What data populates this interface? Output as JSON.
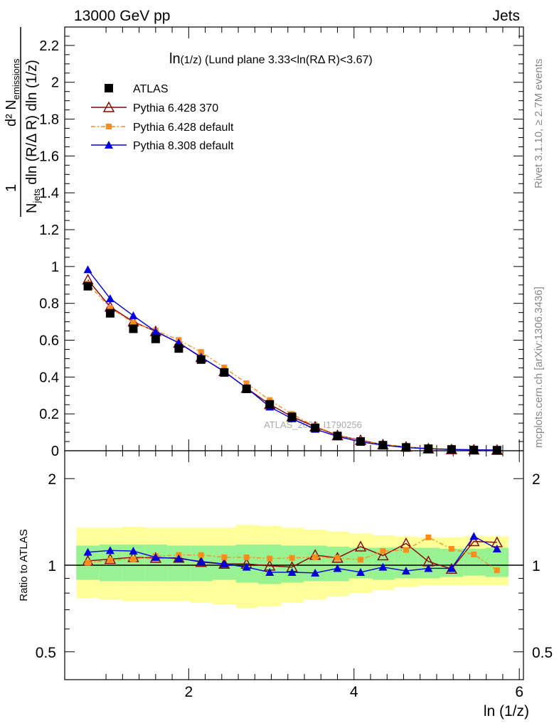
{
  "header": {
    "left": "13000 GeV pp",
    "right": "Jets"
  },
  "side": {
    "rivet": "Rivet 3.1.10, ≥ 2.7M events",
    "mcplots": "mcplots.cern.ch [arXiv:1306.3436]"
  },
  "chart_data": [
    {
      "type": "line",
      "title": "ln(1/z) (Lund plane 3.33<ln(RΔ R)<3.67)",
      "title_main": "ln",
      "title_sub": "(1/z)",
      "title_rest": " (Lund plane 3.33<ln(RΔ R)<3.67)",
      "ylabel_top": "d² N",
      "ylabel_top_sup": "2",
      "ylabel_top_sub": "emissions",
      "ylabel_bottom": "dln (R/Δ R) dln (1/z)",
      "ylabel_bottom_sub": "jets",
      "watermark": "ATLAS_2020_I1790256",
      "xlim": [
        0.5,
        6.05
      ],
      "ylim": [
        0,
        2.3
      ],
      "y_ticks": [
        0,
        0.2,
        0.4,
        0.6,
        0.8,
        1,
        1.2,
        1.4,
        1.6,
        1.8,
        2,
        2.2
      ],
      "y_tick_labels": [
        "0",
        "0.2",
        "0.4",
        "0.6",
        "0.8",
        "1",
        "1.2",
        "1.4",
        "1.6",
        "1.8",
        "2",
        "2.2"
      ],
      "legend_position": "top-left",
      "x": [
        0.78,
        1.05,
        1.33,
        1.6,
        1.88,
        2.15,
        2.43,
        2.7,
        2.98,
        3.25,
        3.53,
        3.8,
        4.08,
        4.35,
        4.63,
        4.9,
        5.18,
        5.45,
        5.73
      ],
      "series": [
        {
          "name": "ATLAS",
          "color": "#000000",
          "marker": "square",
          "values": [
            0.893,
            0.746,
            0.662,
            0.607,
            0.555,
            0.495,
            0.425,
            0.336,
            0.252,
            0.184,
            0.124,
            0.08,
            0.05,
            0.03,
            0.018,
            0.011,
            0.007,
            0.004,
            0.003
          ]
        },
        {
          "name": "Pythia 6.428 370",
          "color": "#8b0000",
          "marker": "triangle-open",
          "values": [
            0.928,
            0.781,
            0.7,
            0.648,
            0.585,
            0.507,
            0.431,
            0.34,
            0.252,
            0.185,
            0.13,
            0.083,
            0.057,
            0.033,
            0.021,
            0.011,
            0.007,
            0.005,
            0.0035
          ]
        },
        {
          "name": "Pythia 6.428 default",
          "color": "#ff8c1a",
          "marker": "square-small",
          "dash": "dashdot",
          "values": [
            0.907,
            0.775,
            0.694,
            0.652,
            0.601,
            0.536,
            0.452,
            0.366,
            0.275,
            0.199,
            0.132,
            0.087,
            0.052,
            0.034,
            0.02,
            0.014,
            0.008,
            0.0044,
            0.0029
          ]
        },
        {
          "name": "Pythia 8.308 default",
          "color": "#0000dd",
          "marker": "triangle-filled",
          "values": [
            0.983,
            0.826,
            0.733,
            0.647,
            0.586,
            0.509,
            0.429,
            0.341,
            0.238,
            0.174,
            0.117,
            0.078,
            0.048,
            0.03,
            0.017,
            0.011,
            0.007,
            0.005,
            0.0034
          ]
        }
      ]
    },
    {
      "type": "line",
      "ylabel": "Ratio to ATLAS",
      "xlabel": "ln (1/z)",
      "x_ticks": [
        2,
        4,
        6
      ],
      "x_tick_labels": [
        "2",
        "4",
        "6"
      ],
      "y_scale": "log",
      "ylim": [
        0.4,
        2.5
      ],
      "y_tick_labels_shown": [
        "0.5",
        "1",
        "2"
      ],
      "y_ticks_labeled": [
        0.5,
        1,
        2
      ],
      "bands": {
        "x_edges": [
          0.64,
          0.92,
          1.19,
          1.47,
          1.74,
          2.02,
          2.29,
          2.57,
          2.84,
          3.12,
          3.39,
          3.67,
          3.94,
          4.22,
          4.49,
          4.77,
          5.04,
          5.32,
          5.59,
          5.87
        ],
        "stat_lo": [
          0.89,
          0.88,
          0.88,
          0.88,
          0.88,
          0.88,
          0.89,
          0.87,
          0.86,
          0.87,
          0.88,
          0.88,
          0.9,
          0.89,
          0.9,
          0.9,
          0.91,
          0.92,
          0.91
        ],
        "stat_hi": [
          1.17,
          1.18,
          1.18,
          1.18,
          1.17,
          1.17,
          1.17,
          1.18,
          1.18,
          1.17,
          1.17,
          1.16,
          1.15,
          1.15,
          1.15,
          1.15,
          1.14,
          1.14,
          1.15
        ],
        "syst_lo": [
          0.77,
          0.76,
          0.75,
          0.75,
          0.75,
          0.74,
          0.73,
          0.71,
          0.72,
          0.74,
          0.76,
          0.78,
          0.8,
          0.82,
          0.84,
          0.85,
          0.85,
          0.85,
          0.85
        ],
        "syst_hi": [
          1.35,
          1.35,
          1.36,
          1.35,
          1.35,
          1.35,
          1.35,
          1.38,
          1.37,
          1.35,
          1.33,
          1.31,
          1.29,
          1.27,
          1.26,
          1.25,
          1.25,
          1.26,
          1.26
        ],
        "stat_color": "#99f291",
        "syst_color": "#ffff99"
      },
      "series": [
        {
          "name": "Pythia 6.428 370",
          "color": "#8b0000",
          "marker": "triangle-open",
          "values": [
            1.035,
            1.05,
            1.065,
            1.06,
            1.06,
            1.025,
            1.01,
            1.01,
            0.995,
            0.985,
            1.085,
            1.06,
            1.16,
            1.08,
            1.19,
            1.03,
            0.97,
            1.21,
            1.2
          ]
        },
        {
          "name": "Pythia 6.428 default",
          "color": "#ff8c1a",
          "marker": "square-small",
          "dash": "dashdot",
          "values": [
            1.02,
            1.04,
            1.05,
            1.075,
            1.085,
            1.085,
            1.065,
            1.065,
            1.055,
            1.06,
            1.065,
            1.06,
            1.045,
            1.12,
            1.13,
            1.25,
            1.14,
            1.09,
            0.96
          ]
        },
        {
          "name": "Pythia 8.308 default",
          "color": "#0000dd",
          "marker": "triangle-filled",
          "values": [
            1.11,
            1.125,
            1.12,
            1.065,
            1.055,
            1.03,
            1.01,
            0.985,
            0.945,
            0.945,
            0.94,
            0.975,
            0.945,
            0.985,
            0.955,
            0.975,
            0.975,
            1.26,
            1.14
          ]
        }
      ]
    }
  ]
}
